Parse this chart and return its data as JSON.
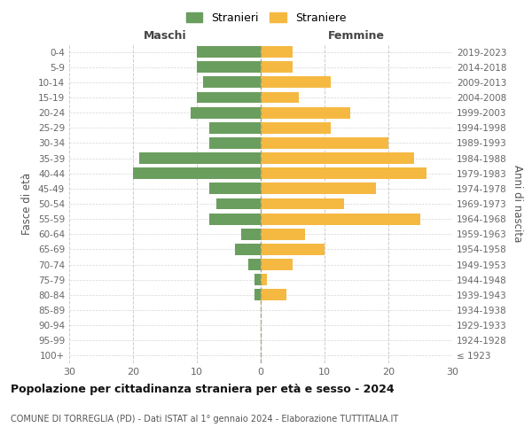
{
  "age_groups": [
    "100+",
    "95-99",
    "90-94",
    "85-89",
    "80-84",
    "75-79",
    "70-74",
    "65-69",
    "60-64",
    "55-59",
    "50-54",
    "45-49",
    "40-44",
    "35-39",
    "30-34",
    "25-29",
    "20-24",
    "15-19",
    "10-14",
    "5-9",
    "0-4"
  ],
  "birth_years": [
    "≤ 1923",
    "1924-1928",
    "1929-1933",
    "1934-1938",
    "1939-1943",
    "1944-1948",
    "1949-1953",
    "1954-1958",
    "1959-1963",
    "1964-1968",
    "1969-1973",
    "1974-1978",
    "1979-1983",
    "1984-1988",
    "1989-1993",
    "1994-1998",
    "1999-2003",
    "2004-2008",
    "2009-2013",
    "2014-2018",
    "2019-2023"
  ],
  "maschi": [
    0,
    0,
    0,
    0,
    1,
    1,
    2,
    4,
    3,
    8,
    7,
    8,
    20,
    19,
    8,
    8,
    11,
    10,
    9,
    10,
    10
  ],
  "femmine": [
    0,
    0,
    0,
    0,
    4,
    1,
    5,
    10,
    7,
    25,
    13,
    18,
    26,
    24,
    20,
    11,
    14,
    6,
    11,
    5,
    5
  ],
  "maschi_color": "#6a9e5e",
  "femmine_color": "#f5b942",
  "background_color": "#ffffff",
  "grid_color": "#cccccc",
  "title": "Popolazione per cittadinanza straniera per età e sesso - 2024",
  "subtitle": "COMUNE DI TORREGLIA (PD) - Dati ISTAT al 1° gennaio 2024 - Elaborazione TUTTITALIA.IT",
  "ylabel_left": "Fasce di età",
  "ylabel_right": "Anni di nascita",
  "xlabel_left": "Maschi",
  "xlabel_right": "Femmine",
  "legend_maschi": "Stranieri",
  "legend_femmine": "Straniere",
  "xlim": 30,
  "figsize": [
    6.0,
    5.0
  ],
  "dpi": 100
}
